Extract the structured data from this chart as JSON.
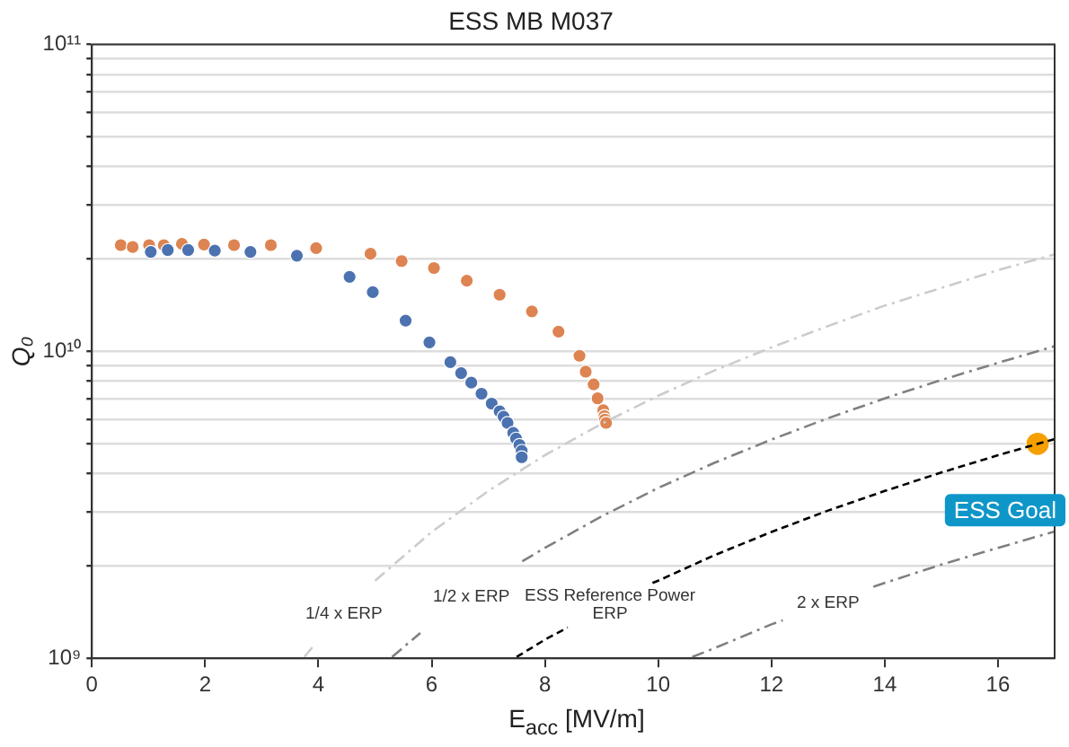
{
  "chart_data": {
    "type": "scatter",
    "title": "ESS MB M037",
    "xlabel": "E$_{acc}$ [MV/m]",
    "ylabel": "Q₀",
    "log": "y",
    "grid": "y",
    "legend": false,
    "xlim": [
      0,
      17
    ],
    "xticks": [
      0,
      2,
      4,
      6,
      8,
      10,
      12,
      14,
      16
    ],
    "ylim": [
      1000000000,
      100000000000
    ],
    "yticks": [
      {
        "value": 1000000000,
        "label": "10⁹"
      },
      {
        "value": 2000000000,
        "label": null
      },
      {
        "value": 3000000000,
        "label": null
      },
      {
        "value": 4000000000,
        "label": null
      },
      {
        "value": 5000000000,
        "label": null
      },
      {
        "value": 6000000000,
        "label": null
      },
      {
        "value": 7000000000,
        "label": null
      },
      {
        "value": 8000000000,
        "label": null
      },
      {
        "value": 9000000000,
        "label": null
      },
      {
        "value": 10000000000,
        "label": "10¹⁰"
      },
      {
        "value": 20000000000,
        "label": null
      },
      {
        "value": 30000000000,
        "label": null
      },
      {
        "value": 40000000000,
        "label": null
      },
      {
        "value": 50000000000,
        "label": null
      },
      {
        "value": 60000000000,
        "label": null
      },
      {
        "value": 70000000000,
        "label": null
      },
      {
        "value": 80000000000,
        "label": null
      },
      {
        "value": 90000000000,
        "label": null
      },
      {
        "value": 100000000000,
        "label": "10¹¹"
      }
    ],
    "series": [
      {
        "type": "line",
        "color": "#cccccc",
        "line_style": "dashdot",
        "x": [
          3.75,
          3.9,
          4.4,
          5,
          6,
          7,
          8,
          9,
          10,
          11,
          12,
          13,
          14,
          15,
          16,
          17
        ],
        "values": [
          1010000000,
          1090000000,
          null,
          1790000000,
          2580000000,
          3510000000,
          4590000000,
          5810000000,
          7170000000,
          8680000000,
          10300000000,
          12100000000,
          14100000000,
          16100000000,
          18400000000,
          20700000000
        ]
      },
      {
        "type": "line",
        "color": "#808080",
        "line_style": "dashdot",
        "x": [
          5.3,
          5.8,
          6.7,
          7.6,
          8,
          9,
          10,
          11,
          12,
          13,
          14,
          15,
          16,
          17
        ],
        "values": [
          1010000000,
          1210000000,
          null,
          2070000000,
          2290000000,
          2900000000,
          3590000000,
          4340000000,
          5160000000,
          6060000000,
          7030000000,
          8070000000,
          9180000000,
          10400000000
        ]
      },
      {
        "type": "line",
        "color": "#000000",
        "line_style": "dashed",
        "x": [
          7.5,
          8,
          8.4,
          9.1,
          9.9,
          10,
          11,
          12,
          13,
          14,
          15,
          16,
          17
        ],
        "values": [
          1010000000,
          1150000000,
          1260000000,
          null,
          1760000000,
          1790000000,
          2170000000,
          2580000000,
          3030000000,
          3510000000,
          4030000000,
          4590000000,
          5180000000
        ]
      },
      {
        "type": "line",
        "color": "#808080",
        "line_style": "dashdot",
        "x": [
          10.6,
          11,
          12,
          12.2,
          13,
          13.8,
          14,
          15,
          16,
          17
        ],
        "values": [
          1010000000,
          1080000000,
          1290000000,
          1330000000,
          null,
          1710000000,
          1760000000,
          2020000000,
          2290000000,
          2590000000
        ]
      },
      {
        "type": "scatter",
        "color": "#4c72b0",
        "marker": "circle",
        "x": [
          1.04,
          1.34,
          1.7,
          2.17,
          2.8,
          3.62,
          4.55,
          4.96,
          5.54,
          5.96,
          6.33,
          6.52,
          6.7,
          6.88,
          7.06,
          7.2,
          7.27,
          7.34,
          7.44,
          7.49,
          7.55,
          7.59,
          7.59
        ],
        "values": [
          21100000000,
          21400000000,
          21400000000,
          21300000000,
          21100000000,
          20500000000,
          17500000000,
          15600000000,
          12600000000,
          10700000000,
          9220000000,
          8490000000,
          7910000000,
          7280000000,
          6760000000,
          6380000000,
          6130000000,
          5850000000,
          5430000000,
          5200000000,
          4960000000,
          4740000000,
          4520000000
        ]
      },
      {
        "type": "scatter",
        "color": "#dd8452",
        "marker": "circle",
        "x": [
          0.51,
          0.72,
          1.01,
          1.27,
          1.59,
          1.98,
          2.51,
          3.16,
          3.96,
          4.92,
          5.47,
          6.04,
          6.62,
          7.2,
          7.77,
          8.24,
          8.61,
          8.72,
          8.86,
          8.93,
          9.03,
          9.05,
          9.06,
          9.08
        ],
        "values": [
          22200000000,
          21900000000,
          22200000000,
          22200000000,
          22400000000,
          22300000000,
          22200000000,
          22200000000,
          21700000000,
          20800000000,
          19700000000,
          18700000000,
          17000000000,
          15300000000,
          13500000000,
          11600000000,
          9680000000,
          8590000000,
          7810000000,
          7030000000,
          6430000000,
          6160000000,
          6000000000,
          5850000000
        ]
      },
      {
        "type": "scatter",
        "color": "#f5a000",
        "marker": "circle",
        "x": [
          16.7
        ],
        "values": [
          5000000000
        ]
      }
    ],
    "annotations": [
      "1/4 x ERP",
      "1/2 x ERP",
      "ESS Reference Power\nERP",
      "2 x ERP",
      {
        "text": "ESS Goal",
        "x": 16.7,
        "y": 5000000000
      }
    ]
  }
}
